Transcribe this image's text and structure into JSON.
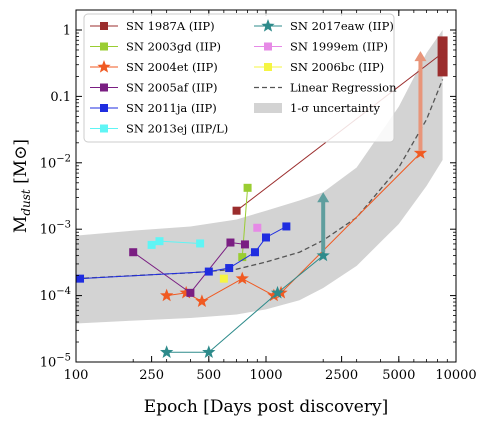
{
  "chart_data": {
    "type": "scatter",
    "xlabel": "Epoch [Days post discovery]",
    "ylabel_main": "M",
    "ylabel_sub": "dust",
    "ylabel_unit": "[M⊙]",
    "xscale": "log",
    "yscale": "log",
    "xlim": [
      100,
      10000
    ],
    "ylim": [
      1e-05,
      2
    ],
    "x_ticks": [
      {
        "value": 100,
        "label": "100"
      },
      {
        "value": 250,
        "label": "250"
      },
      {
        "value": 500,
        "label": "500"
      },
      {
        "value": 1000,
        "label": "1000"
      },
      {
        "value": 2500,
        "label": "2500"
      },
      {
        "value": 5000,
        "label": "5000"
      },
      {
        "value": 10000,
        "label": "10000"
      }
    ],
    "y_ticks": [
      {
        "value": 1e-05,
        "base": "10",
        "exp": "−5"
      },
      {
        "value": 0.0001,
        "base": "10",
        "exp": "−4"
      },
      {
        "value": 0.001,
        "base": "10",
        "exp": "−3"
      },
      {
        "value": 0.01,
        "base": "10",
        "exp": "−2"
      },
      {
        "value": 0.1,
        "label": "0.1"
      },
      {
        "value": 1,
        "label": "1"
      }
    ],
    "series": [
      {
        "name": "SN 1987A (IIP)",
        "color": "#9b2d2d",
        "marker": "square",
        "x": [
          700,
          8500
        ],
        "y": [
          0.0019,
          0.45
        ]
      },
      {
        "name": "SN 2003gd (IIP)",
        "color": "#9acd32",
        "marker": "square",
        "x": [
          750,
          800
        ],
        "y": [
          0.00038,
          0.0042
        ]
      },
      {
        "name": "SN 2004et (IIP)",
        "color": "#f05a22",
        "marker": "star",
        "x": [
          300,
          380,
          460,
          750,
          1100,
          1200,
          6500
        ],
        "y": [
          0.0001,
          0.00011,
          8.2e-05,
          0.00018,
          0.0001,
          0.00011,
          0.014
        ]
      },
      {
        "name": "SN 2005af (IIP)",
        "color": "#7a1e82",
        "marker": "square",
        "x": [
          200,
          400,
          650,
          775
        ],
        "y": [
          0.00045,
          0.00011,
          0.00063,
          0.00059
        ]
      },
      {
        "name": "SN 2011ja (IIP)",
        "color": "#1f2de0",
        "marker": "square",
        "x": [
          105,
          500,
          640,
          875,
          1000,
          1280
        ],
        "y": [
          0.00018,
          0.00023,
          0.00026,
          0.00045,
          0.00075,
          0.0011
        ]
      },
      {
        "name": "SN 2013ej (IIP/L)",
        "color": "#5ff5f5",
        "marker": "square",
        "x": [
          250,
          275,
          450
        ],
        "y": [
          0.00058,
          0.00066,
          0.00061
        ]
      },
      {
        "name": "SN 2017eaw (IIP)",
        "color": "#2e8b8b",
        "marker": "star",
        "x": [
          300,
          500,
          1150,
          2000
        ],
        "y": [
          1.4e-05,
          1.4e-05,
          0.00011,
          0.0004
        ]
      },
      {
        "name": "SN 1999em (IIP)",
        "color": "#e68ae6",
        "marker": "square",
        "x": [
          900
        ],
        "y": [
          0.00105
        ]
      },
      {
        "name": "SN 2006bc (IIP)",
        "color": "#f5f542",
        "marker": "square",
        "x": [
          600
        ],
        "y": [
          0.00018
        ]
      }
    ],
    "regression": {
      "name": "Linear Regression",
      "x": [
        100,
        200,
        400,
        700,
        1000,
        1500,
        2000,
        3000,
        5000,
        7000,
        8500
      ],
      "y": [
        0.00018,
        0.0002,
        0.00022,
        0.00025,
        0.00032,
        0.00045,
        0.00068,
        0.0015,
        0.0085,
        0.045,
        0.18
      ]
    },
    "uncertainty": {
      "name": "1-σ uncertainty",
      "x": [
        100,
        200,
        400,
        700,
        1000,
        1500,
        2000,
        3000,
        5000,
        7000,
        8500
      ],
      "upper": [
        0.0008,
        0.00095,
        0.0011,
        0.0014,
        0.0019,
        0.0027,
        0.0036,
        0.0085,
        0.07,
        0.45,
        1.0
      ],
      "lower": [
        3.8e-05,
        4.2e-05,
        4.6e-05,
        5.2e-05,
        6.2e-05,
        8.5e-05,
        0.00013,
        0.00028,
        0.0012,
        0.0045,
        0.011
      ]
    },
    "arrows": [
      {
        "color": "#5f9e9e",
        "x": 2000,
        "from": 0.00045,
        "to": 0.0036
      },
      {
        "color": "#e8957a",
        "x": 6500,
        "from": 0.015,
        "to": 0.48
      }
    ],
    "bar_1987A": {
      "color": "#9b2d2d",
      "x": 8500,
      "from": 0.2,
      "to": 0.8
    },
    "legend_position": "top"
  }
}
